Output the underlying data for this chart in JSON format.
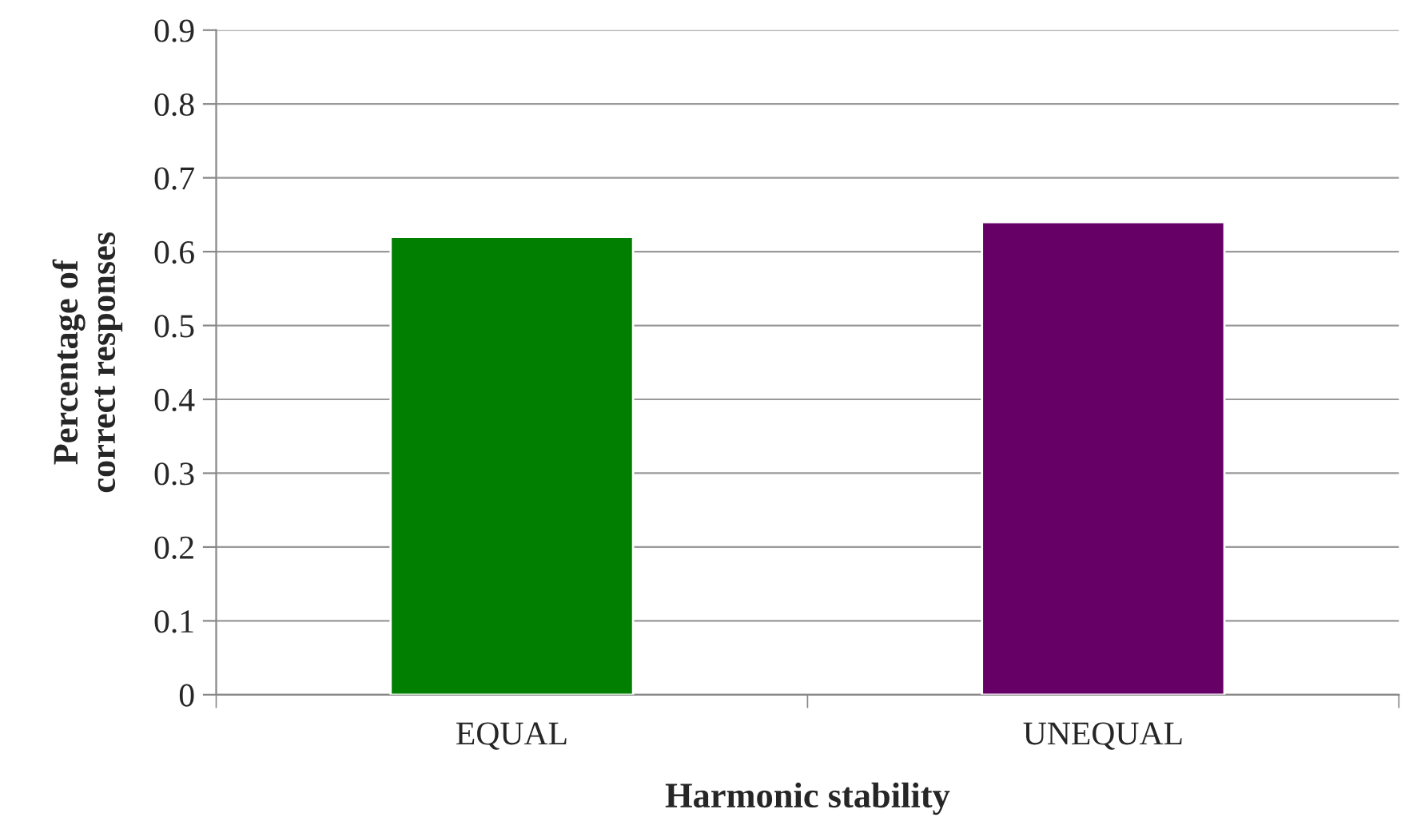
{
  "chart_data": {
    "type": "bar",
    "categories": [
      "EQUAL",
      "UNEQUAL"
    ],
    "values": [
      0.62,
      0.64
    ],
    "colors": [
      "#007f00",
      "#660066"
    ],
    "xlabel": "Harmonic stability",
    "ylabel": "Percentage of\ncorrect responses",
    "ylim": [
      0,
      0.9
    ],
    "yticks": [
      0,
      0.1,
      0.2,
      0.3,
      0.4,
      0.5,
      0.6,
      0.7,
      0.8,
      0.9
    ],
    "grid": "y",
    "legend": false
  }
}
